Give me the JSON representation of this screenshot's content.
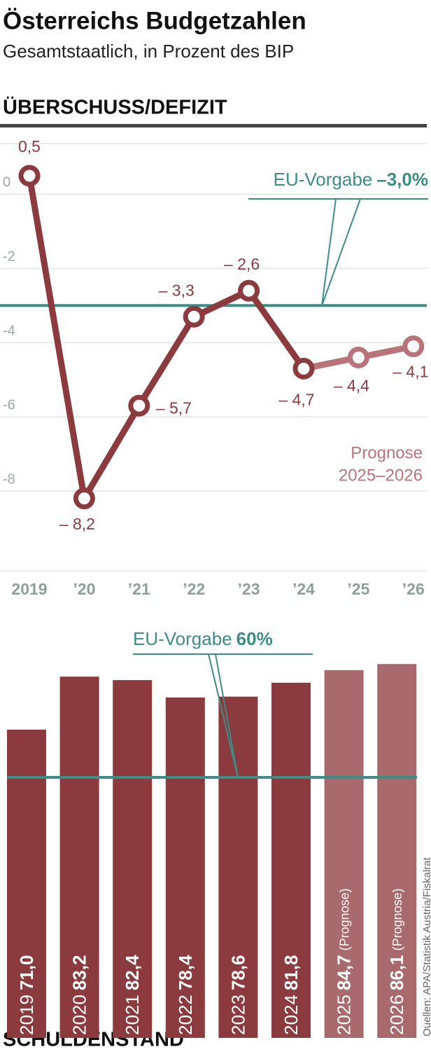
{
  "title": "Österreichs Budgetzahlen",
  "subtitle": "Gesamtstaatlich, in Prozent des BIP",
  "source": "Quellen: APA/Statistik Austria/Fiskalrat",
  "chart_data": [
    {
      "type": "line",
      "title": "ÜBERSCHUSS/DEFIZIT",
      "categories": [
        "2019",
        "’20",
        "’21",
        "’22",
        "’23",
        "’24",
        "’25",
        "’26"
      ],
      "values": [
        0.5,
        -8.2,
        -5.7,
        -3.3,
        -2.6,
        -4.7,
        -4.4,
        -4.1
      ],
      "value_labels": [
        "0,5",
        "– 8,2",
        "– 5,7",
        "– 3,3",
        "– 2,6",
        "– 4,7",
        "– 4,4",
        "– 4,1"
      ],
      "point_colors": [
        "#8b3a3e",
        "#8b3a3e",
        "#8b3a3e",
        "#8b3a3e",
        "#8b3a3e",
        "#8b3a3e",
        "#b87478",
        "#b87478"
      ],
      "ylim": [
        -10,
        1.5
      ],
      "yticks": [
        0,
        -2,
        -4,
        -6,
        -8
      ],
      "grid": true,
      "reference": {
        "value": -3,
        "label": "EU-Vorgabe",
        "value_label": "–3,0%",
        "color": "#3e8c88"
      },
      "annotation": [
        "Prognose",
        "2025–2026"
      ]
    },
    {
      "type": "bar",
      "title": "SCHULDENSTAND",
      "categories": [
        "2019",
        "2020",
        "2021",
        "2022",
        "2023",
        "2024",
        "2025",
        "2026"
      ],
      "category_notes": [
        null,
        null,
        null,
        null,
        null,
        null,
        "(Prognose)",
        "(Prognose)"
      ],
      "values": [
        71.0,
        83.2,
        82.4,
        78.4,
        78.6,
        81.8,
        84.7,
        86.1
      ],
      "value_labels": [
        "71,0",
        "83,2",
        "82,4",
        "78,4",
        "78,6",
        "81,8",
        "84,7",
        "86,1"
      ],
      "colors": [
        "#8b3a3e",
        "#8b3a3e",
        "#8b3a3e",
        "#8b3a3e",
        "#8b3a3e",
        "#8b3a3e",
        "#a86a6d",
        "#a86a6d"
      ],
      "ylim": [
        0,
        90
      ],
      "reference": {
        "value": 60,
        "label": "EU-Vorgabe",
        "value_label": "60%",
        "color": "#3e8c88"
      }
    }
  ]
}
